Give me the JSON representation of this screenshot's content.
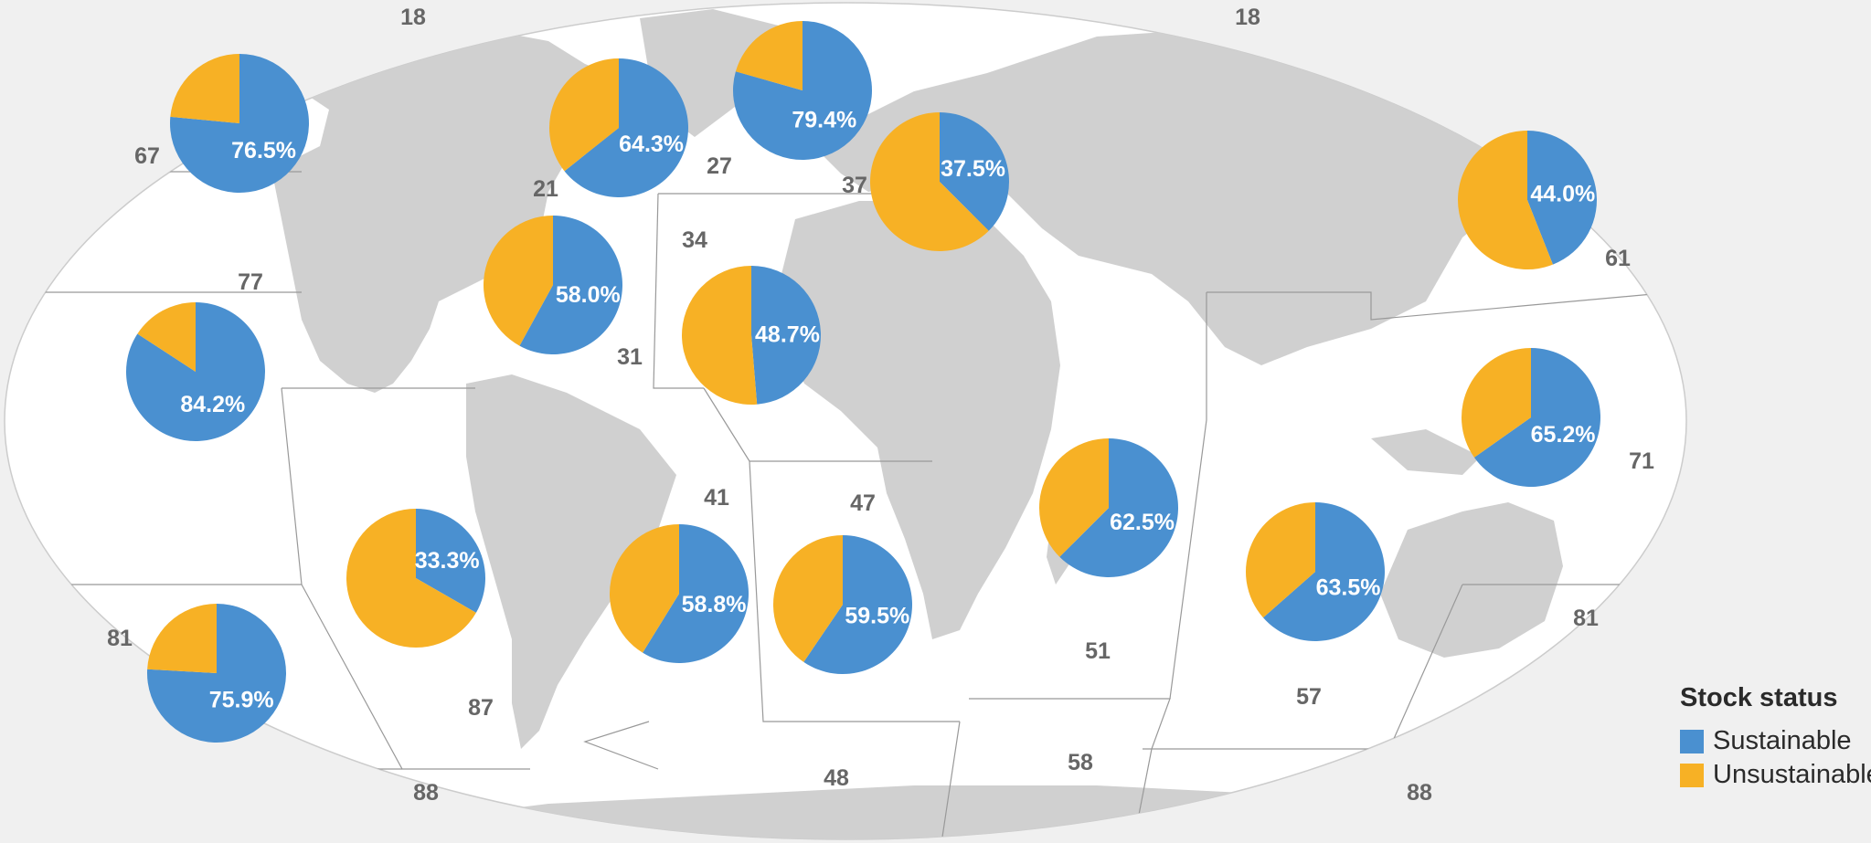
{
  "legend": {
    "title": "Stock status",
    "items": [
      {
        "label": "Sustainable",
        "color": "#4a90d0"
      },
      {
        "label": "Unsustainable",
        "color": "#f7b125"
      }
    ]
  },
  "colors": {
    "ocean": "#ffffff",
    "land": "#d0d0d0",
    "background": "#f0f0f0",
    "boundary": "#999999"
  },
  "fishing_areas": [
    "18",
    "18",
    "67",
    "21",
    "27",
    "37",
    "61",
    "77",
    "34",
    "31",
    "41",
    "47",
    "71",
    "81",
    "51",
    "57",
    "87",
    "58",
    "48",
    "88",
    "88",
    "81"
  ],
  "chart_data": {
    "type": "pie",
    "series": [
      {
        "name": "Sustainable"
      },
      {
        "name": "Unsustainable"
      }
    ],
    "pies": [
      {
        "label": "76.5%",
        "sustainable": 76.5
      },
      {
        "label": "64.3%",
        "sustainable": 64.3
      },
      {
        "label": "79.4%",
        "sustainable": 79.4
      },
      {
        "label": "37.5%",
        "sustainable": 37.5
      },
      {
        "label": "44.0%",
        "sustainable": 44.0
      },
      {
        "label": "58.0%",
        "sustainable": 58.0
      },
      {
        "label": "48.7%",
        "sustainable": 48.7
      },
      {
        "label": "84.2%",
        "sustainable": 84.2
      },
      {
        "label": "65.2%",
        "sustainable": 65.2
      },
      {
        "label": "62.5%",
        "sustainable": 62.5
      },
      {
        "label": "33.3%",
        "sustainable": 33.3
      },
      {
        "label": "58.8%",
        "sustainable": 58.8
      },
      {
        "label": "59.5%",
        "sustainable": 59.5
      },
      {
        "label": "63.5%",
        "sustainable": 63.5
      },
      {
        "label": "75.9%",
        "sustainable": 75.9
      }
    ]
  }
}
